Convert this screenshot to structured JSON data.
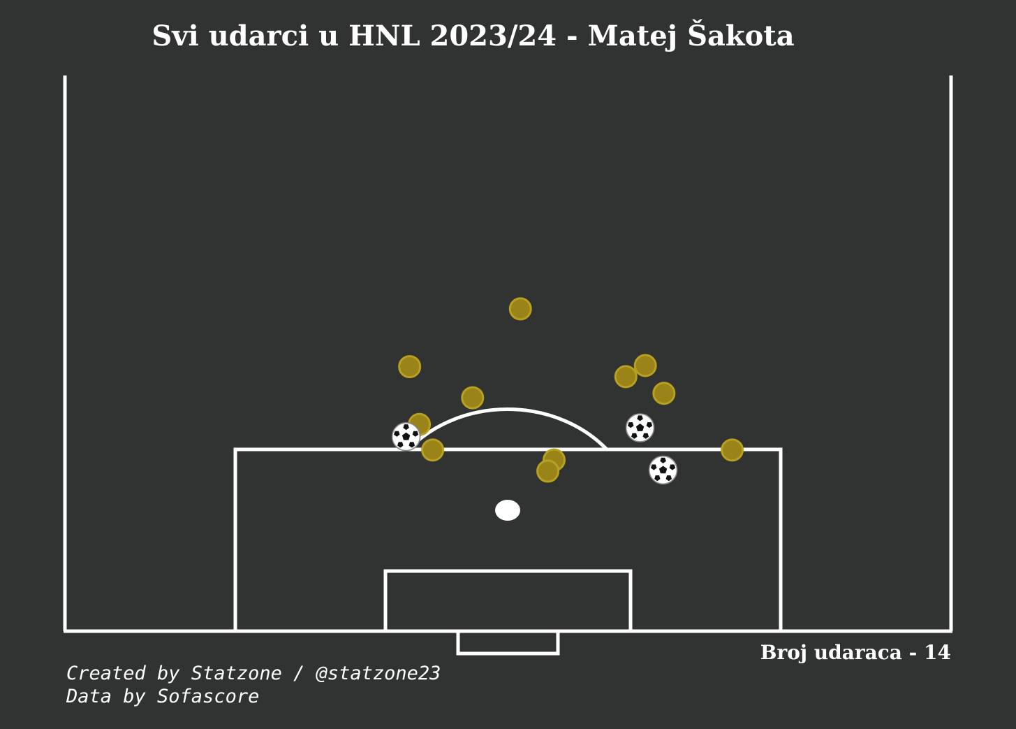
{
  "title": "Svi udarci u HNL 2023/24 - Matej Šakota",
  "shot_count_text": "Broj udaraca - 14",
  "credits": {
    "created_by": "Created by Statzone / @statzone23",
    "data_by": "Data by Sofascore"
  },
  "colors": {
    "background": "#313332",
    "lines": "#ffffff",
    "shot_fill": "#9a8318",
    "shot_edge": "#b8a020",
    "goal_ball": "#ffffff"
  },
  "chart_data": {
    "type": "scatter",
    "title": "Svi udarci u HNL 2023/24 - Matej Šakota",
    "xlabel": "",
    "ylabel": "",
    "x_unit": "pitch width (0-100)",
    "y_unit": "pitch length (0-100)",
    "xlim": [
      0,
      100
    ],
    "ylim": [
      50,
      100
    ],
    "grid": false,
    "legend": "none",
    "series": [
      {
        "outcome": "non-goal",
        "marker": "circle",
        "points": [
          {
            "x": 51.4,
            "y": 79.0
          },
          {
            "x": 38.9,
            "y": 73.8
          },
          {
            "x": 65.5,
            "y": 73.9
          },
          {
            "x": 63.3,
            "y": 72.9
          },
          {
            "x": 67.6,
            "y": 71.4
          },
          {
            "x": 46.0,
            "y": 71.0
          },
          {
            "x": 40.0,
            "y": 68.6
          },
          {
            "x": 41.5,
            "y": 66.3
          },
          {
            "x": 75.3,
            "y": 66.3
          },
          {
            "x": 55.2,
            "y": 65.4
          },
          {
            "x": 54.5,
            "y": 64.4
          }
        ]
      },
      {
        "outcome": "goal",
        "marker": "football",
        "points": [
          {
            "x": 38.5,
            "y": 67.5
          },
          {
            "x": 64.9,
            "y": 68.3
          },
          {
            "x": 67.5,
            "y": 64.5
          }
        ]
      }
    ]
  }
}
